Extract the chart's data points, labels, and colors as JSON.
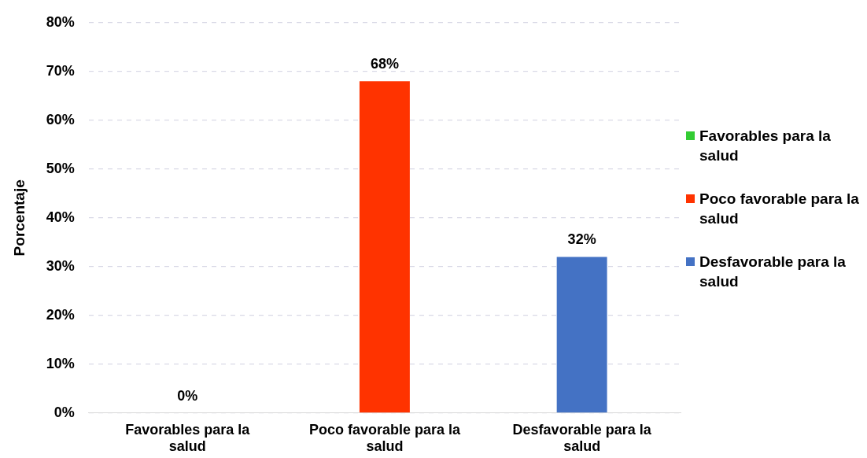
{
  "chart_data": {
    "type": "bar",
    "ylabel": "Porcentaje",
    "categories": [
      "Favorables para la salud",
      "Poco favorable para la salud",
      "Desfavorable para la salud"
    ],
    "series": [
      {
        "name": "Favorables para la salud",
        "color": "#33cc33",
        "values": [
          0,
          null,
          null
        ],
        "value_labels": [
          "0%",
          null,
          null
        ]
      },
      {
        "name": "Poco favorable para la salud",
        "color": "#ff3300",
        "values": [
          null,
          68,
          null
        ],
        "value_labels": [
          null,
          "68%",
          null
        ]
      },
      {
        "name": "Desfavorable para la salud",
        "color": "#4472c4",
        "values": [
          null,
          null,
          32
        ],
        "value_labels": [
          null,
          null,
          "32%"
        ]
      }
    ],
    "ylim": [
      0,
      80
    ],
    "yticks": [
      {
        "value": 0,
        "label": "0%"
      },
      {
        "value": 10,
        "label": "10%"
      },
      {
        "value": 20,
        "label": "20%"
      },
      {
        "value": 30,
        "label": "30%"
      },
      {
        "value": 40,
        "label": "40%"
      },
      {
        "value": 50,
        "label": "50%"
      },
      {
        "value": 60,
        "label": "60%"
      },
      {
        "value": 70,
        "label": "70%"
      },
      {
        "value": 80,
        "label": "80%"
      }
    ],
    "grid": "y",
    "legend": "right"
  }
}
